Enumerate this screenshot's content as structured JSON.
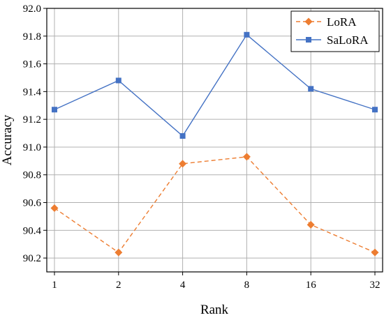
{
  "chart_data": {
    "type": "line",
    "categories": [
      "1",
      "2",
      "4",
      "8",
      "16",
      "32"
    ],
    "series": [
      {
        "name": "LoRA",
        "values": [
          90.56,
          90.24,
          90.88,
          90.93,
          90.44,
          90.24
        ],
        "color": "#ED7D31",
        "line_style": "dashed",
        "marker": "diamond"
      },
      {
        "name": "SaLoRA",
        "values": [
          91.27,
          91.48,
          91.08,
          91.81,
          91.42,
          91.27
        ],
        "color": "#4472C4",
        "line_style": "solid",
        "marker": "square"
      }
    ],
    "title": "",
    "xlabel": "Rank",
    "ylabel": "Accuracy",
    "ylim": [
      90.1,
      92.0
    ],
    "yticks": [
      "90.2",
      "90.4",
      "90.6",
      "90.8",
      "91.0",
      "91.2",
      "91.4",
      "91.6",
      "91.8",
      "92.0"
    ],
    "grid": true,
    "legend_position": "top-right"
  }
}
